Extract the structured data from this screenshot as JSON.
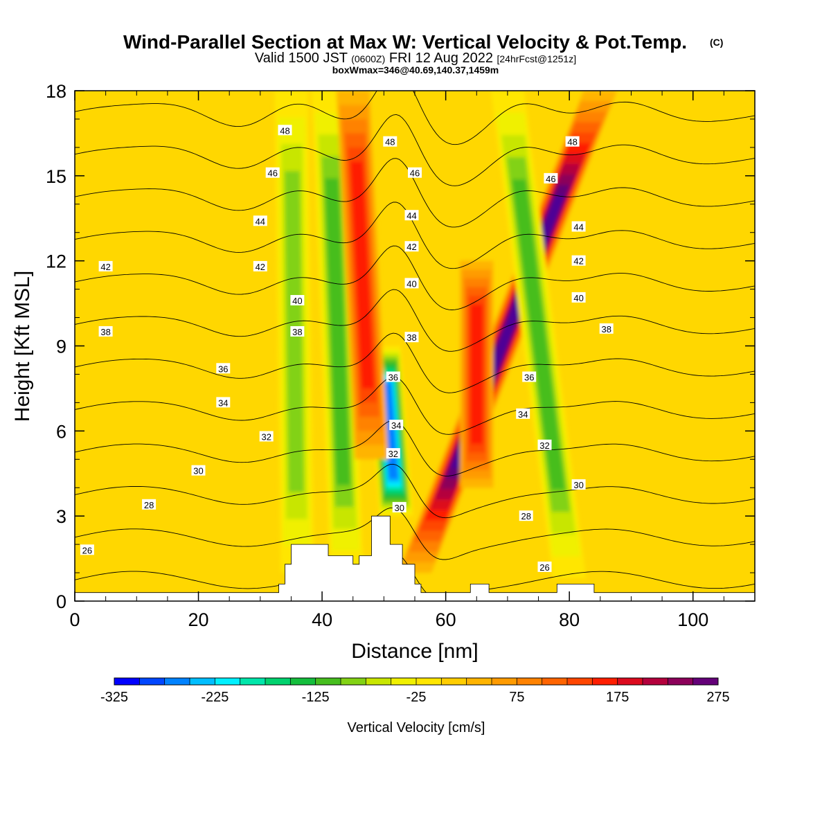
{
  "title": {
    "main": "Wind-Parallel Section at Max W: Vertical Velocity & Pot.Temp.",
    "main_mark": "(C)",
    "valid_prefix": "Valid 1500 JST",
    "valid_utc": "(0600Z)",
    "valid_date": "FRI 12 Aug 2022",
    "forecast": "[24hrFcst@1251z]",
    "boxinfo": "boxWmax=346@40.69,140.37,1459m"
  },
  "colors": {
    "background": "#FFD700",
    "palette": [
      "#0000FF",
      "#0046FF",
      "#0082FF",
      "#00BEFF",
      "#00F0FF",
      "#00E6AA",
      "#00D26E",
      "#14BE3C",
      "#46BE1E",
      "#82D214",
      "#C8E600",
      "#F0F000",
      "#FFE600",
      "#FFCD00",
      "#FFB400",
      "#FF9B00",
      "#FF8200",
      "#FF6400",
      "#FF4600",
      "#FF1E00",
      "#DC0A1E",
      "#B4003C",
      "#8C005A",
      "#640078",
      "#500096"
    ]
  },
  "chart_data": {
    "type": "heatmap",
    "xlabel": "Distance [nm]",
    "ylabel": "Height [Kft MSL]",
    "xlim": [
      0,
      110
    ],
    "ylim": [
      0,
      18
    ],
    "xticks": [
      0,
      20,
      40,
      60,
      80,
      100
    ],
    "yticks": [
      0,
      3,
      6,
      9,
      12,
      15,
      18
    ],
    "colorbar": {
      "title": "Vertical Velocity [cm/s]",
      "range": [
        -325,
        275
      ],
      "step": 25,
      "tick_labels": [
        -325,
        -225,
        -125,
        -25,
        75,
        175,
        275
      ]
    },
    "vertical_velocity_features": [
      {
        "label": "strong updraft",
        "x_base": 55,
        "x_top": 85,
        "y_range": [
          1,
          18
        ],
        "peak_cm_s": 275
      },
      {
        "label": "strong downdraft",
        "x_base": 52,
        "x_top": 50,
        "y_range": [
          3,
          9
        ],
        "peak_cm_s": -275
      },
      {
        "label": "downdraft band",
        "x_base": 36,
        "x_top": 35,
        "y_range": [
          1,
          18
        ],
        "peak_cm_s": -100
      },
      {
        "label": "downdraft band",
        "x_base": 44,
        "x_top": 41,
        "y_range": [
          1,
          18
        ],
        "peak_cm_s": -125
      },
      {
        "label": "downdraft band",
        "x_base": 80,
        "x_top": 70,
        "y_range": [
          0.8,
          18
        ],
        "peak_cm_s": -125
      },
      {
        "label": "updraft",
        "x_base": 65,
        "x_top": 65,
        "y_range": [
          4,
          12
        ],
        "peak_cm_s": 150
      },
      {
        "label": "updraft",
        "x_base": 48,
        "x_top": 45,
        "y_range": [
          5,
          18
        ],
        "peak_cm_s": 150
      }
    ],
    "potential_temperature_contours": [
      {
        "value": 26,
        "labels": [
          {
            "x": 2,
            "y": 1.8
          },
          {
            "x": 76,
            "y": 1.2
          }
        ]
      },
      {
        "value": 28,
        "labels": [
          {
            "x": 12,
            "y": 3.4
          },
          {
            "x": 73,
            "y": 3.0
          }
        ]
      },
      {
        "value": 30,
        "labels": [
          {
            "x": 20,
            "y": 4.6
          },
          {
            "x": 52.5,
            "y": 3.3
          },
          {
            "x": 81.5,
            "y": 4.1
          }
        ]
      },
      {
        "value": 32,
        "labels": [
          {
            "x": 31,
            "y": 5.8
          },
          {
            "x": 51.5,
            "y": 5.2
          },
          {
            "x": 76,
            "y": 5.5
          }
        ]
      },
      {
        "value": 34,
        "labels": [
          {
            "x": 24,
            "y": 7.0
          },
          {
            "x": 52,
            "y": 6.2
          },
          {
            "x": 72.5,
            "y": 6.6
          }
        ]
      },
      {
        "value": 36,
        "labels": [
          {
            "x": 24,
            "y": 8.2
          },
          {
            "x": 51.5,
            "y": 7.9
          },
          {
            "x": 73.5,
            "y": 7.9
          }
        ]
      },
      {
        "value": 38,
        "labels": [
          {
            "x": 5,
            "y": 9.5
          },
          {
            "x": 36,
            "y": 9.5
          },
          {
            "x": 54.5,
            "y": 9.3
          },
          {
            "x": 86,
            "y": 9.6
          }
        ]
      },
      {
        "value": 40,
        "labels": [
          {
            "x": 36,
            "y": 10.6
          },
          {
            "x": 54.5,
            "y": 11.2
          },
          {
            "x": 81.5,
            "y": 10.7
          }
        ]
      },
      {
        "value": 42,
        "labels": [
          {
            "x": 5,
            "y": 11.8
          },
          {
            "x": 30,
            "y": 11.8
          },
          {
            "x": 54.5,
            "y": 12.5
          },
          {
            "x": 81.5,
            "y": 12.0
          }
        ]
      },
      {
        "value": 44,
        "labels": [
          {
            "x": 30,
            "y": 13.4
          },
          {
            "x": 54.5,
            "y": 13.6
          },
          {
            "x": 81.5,
            "y": 13.2
          }
        ]
      },
      {
        "value": 46,
        "labels": [
          {
            "x": 32,
            "y": 15.1
          },
          {
            "x": 55,
            "y": 15.1
          },
          {
            "x": 77,
            "y": 14.9
          }
        ]
      },
      {
        "value": 48,
        "labels": [
          {
            "x": 34,
            "y": 16.6
          },
          {
            "x": 51,
            "y": 16.2
          },
          {
            "x": 80.5,
            "y": 16.2
          }
        ]
      }
    ],
    "terrain": [
      [
        0,
        0.3
      ],
      [
        33,
        0.3
      ],
      [
        33,
        0.6
      ],
      [
        34,
        0.6
      ],
      [
        34,
        1.3
      ],
      [
        35,
        1.3
      ],
      [
        35,
        2.0
      ],
      [
        41,
        2.0
      ],
      [
        41,
        1.6
      ],
      [
        45,
        1.6
      ],
      [
        45,
        1.3
      ],
      [
        46,
        1.3
      ],
      [
        46,
        1.6
      ],
      [
        48,
        1.6
      ],
      [
        48,
        3.0
      ],
      [
        51,
        3.0
      ],
      [
        51,
        2.0
      ],
      [
        53,
        2.0
      ],
      [
        53,
        1.3
      ],
      [
        55,
        1.3
      ],
      [
        55,
        0.6
      ],
      [
        56,
        0.6
      ],
      [
        56,
        0.3
      ],
      [
        64,
        0.3
      ],
      [
        64,
        0.6
      ],
      [
        67,
        0.6
      ],
      [
        67,
        0.3
      ],
      [
        78,
        0.3
      ],
      [
        78,
        0.6
      ],
      [
        84,
        0.6
      ],
      [
        84,
        0.3
      ],
      [
        110,
        0.3
      ]
    ]
  }
}
